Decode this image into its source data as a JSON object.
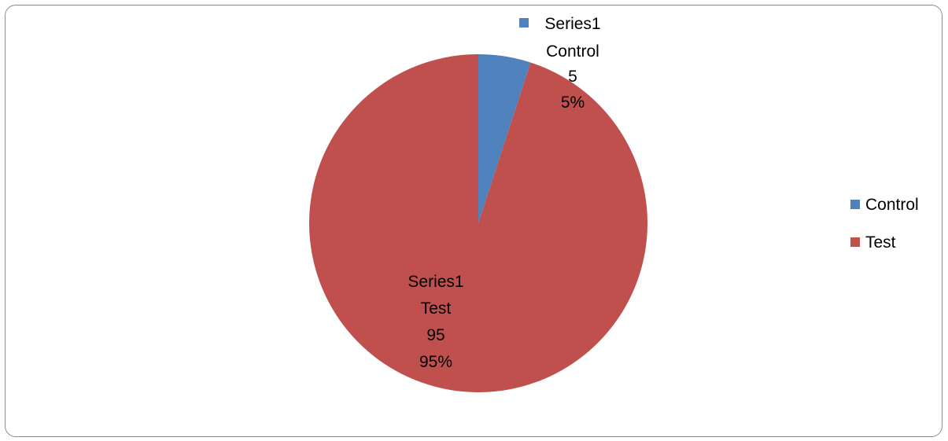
{
  "chart_data": {
    "type": "pie",
    "title": "",
    "series_name": "Series1",
    "slices": [
      {
        "label": "Control",
        "value": 5,
        "percent": "5%",
        "color": "#4f81bd"
      },
      {
        "label": "Test",
        "value": 95,
        "percent": "95%",
        "color": "#c0504d"
      }
    ],
    "legend": {
      "position": "right",
      "items": [
        "Control",
        "Test"
      ]
    },
    "data_labels": {
      "show_series_name": true,
      "show_category": true,
      "show_value": true,
      "show_percent": true
    }
  }
}
